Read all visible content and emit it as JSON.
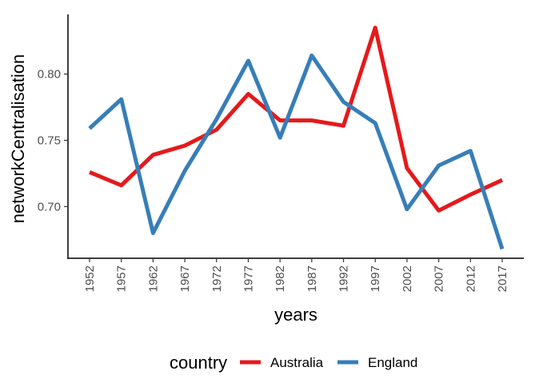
{
  "chart_data": {
    "type": "line",
    "xlabel": "years",
    "ylabel": "networkCentralisation",
    "x": [
      1952,
      1957,
      1962,
      1967,
      1972,
      1977,
      1982,
      1987,
      1992,
      1997,
      2002,
      2007,
      2012,
      2017
    ],
    "x_tick_labels": [
      "1952",
      "1957",
      "1962",
      "1967",
      "1972",
      "1977",
      "1982",
      "1987",
      "1992",
      "1997",
      "2002",
      "2007",
      "2012",
      "2017"
    ],
    "y_ticks": [
      0.7,
      0.75,
      0.8
    ],
    "y_tick_labels": [
      "0.70",
      "0.75",
      "0.80"
    ],
    "ylim": [
      0.661,
      0.845
    ],
    "grid": false,
    "legend_position": "bottom",
    "legend_title": "country",
    "series": [
      {
        "name": "Australia",
        "color": "#e41a1c",
        "values": [
          0.726,
          0.716,
          0.739,
          0.746,
          0.758,
          0.785,
          0.765,
          0.765,
          0.761,
          0.835,
          0.729,
          0.697,
          0.709,
          0.72
        ]
      },
      {
        "name": "England",
        "color": "#377eb8",
        "values": [
          0.759,
          0.781,
          0.68,
          0.727,
          0.766,
          0.81,
          0.752,
          0.814,
          0.779,
          0.763,
          0.698,
          0.731,
          0.742,
          0.668
        ]
      }
    ]
  }
}
